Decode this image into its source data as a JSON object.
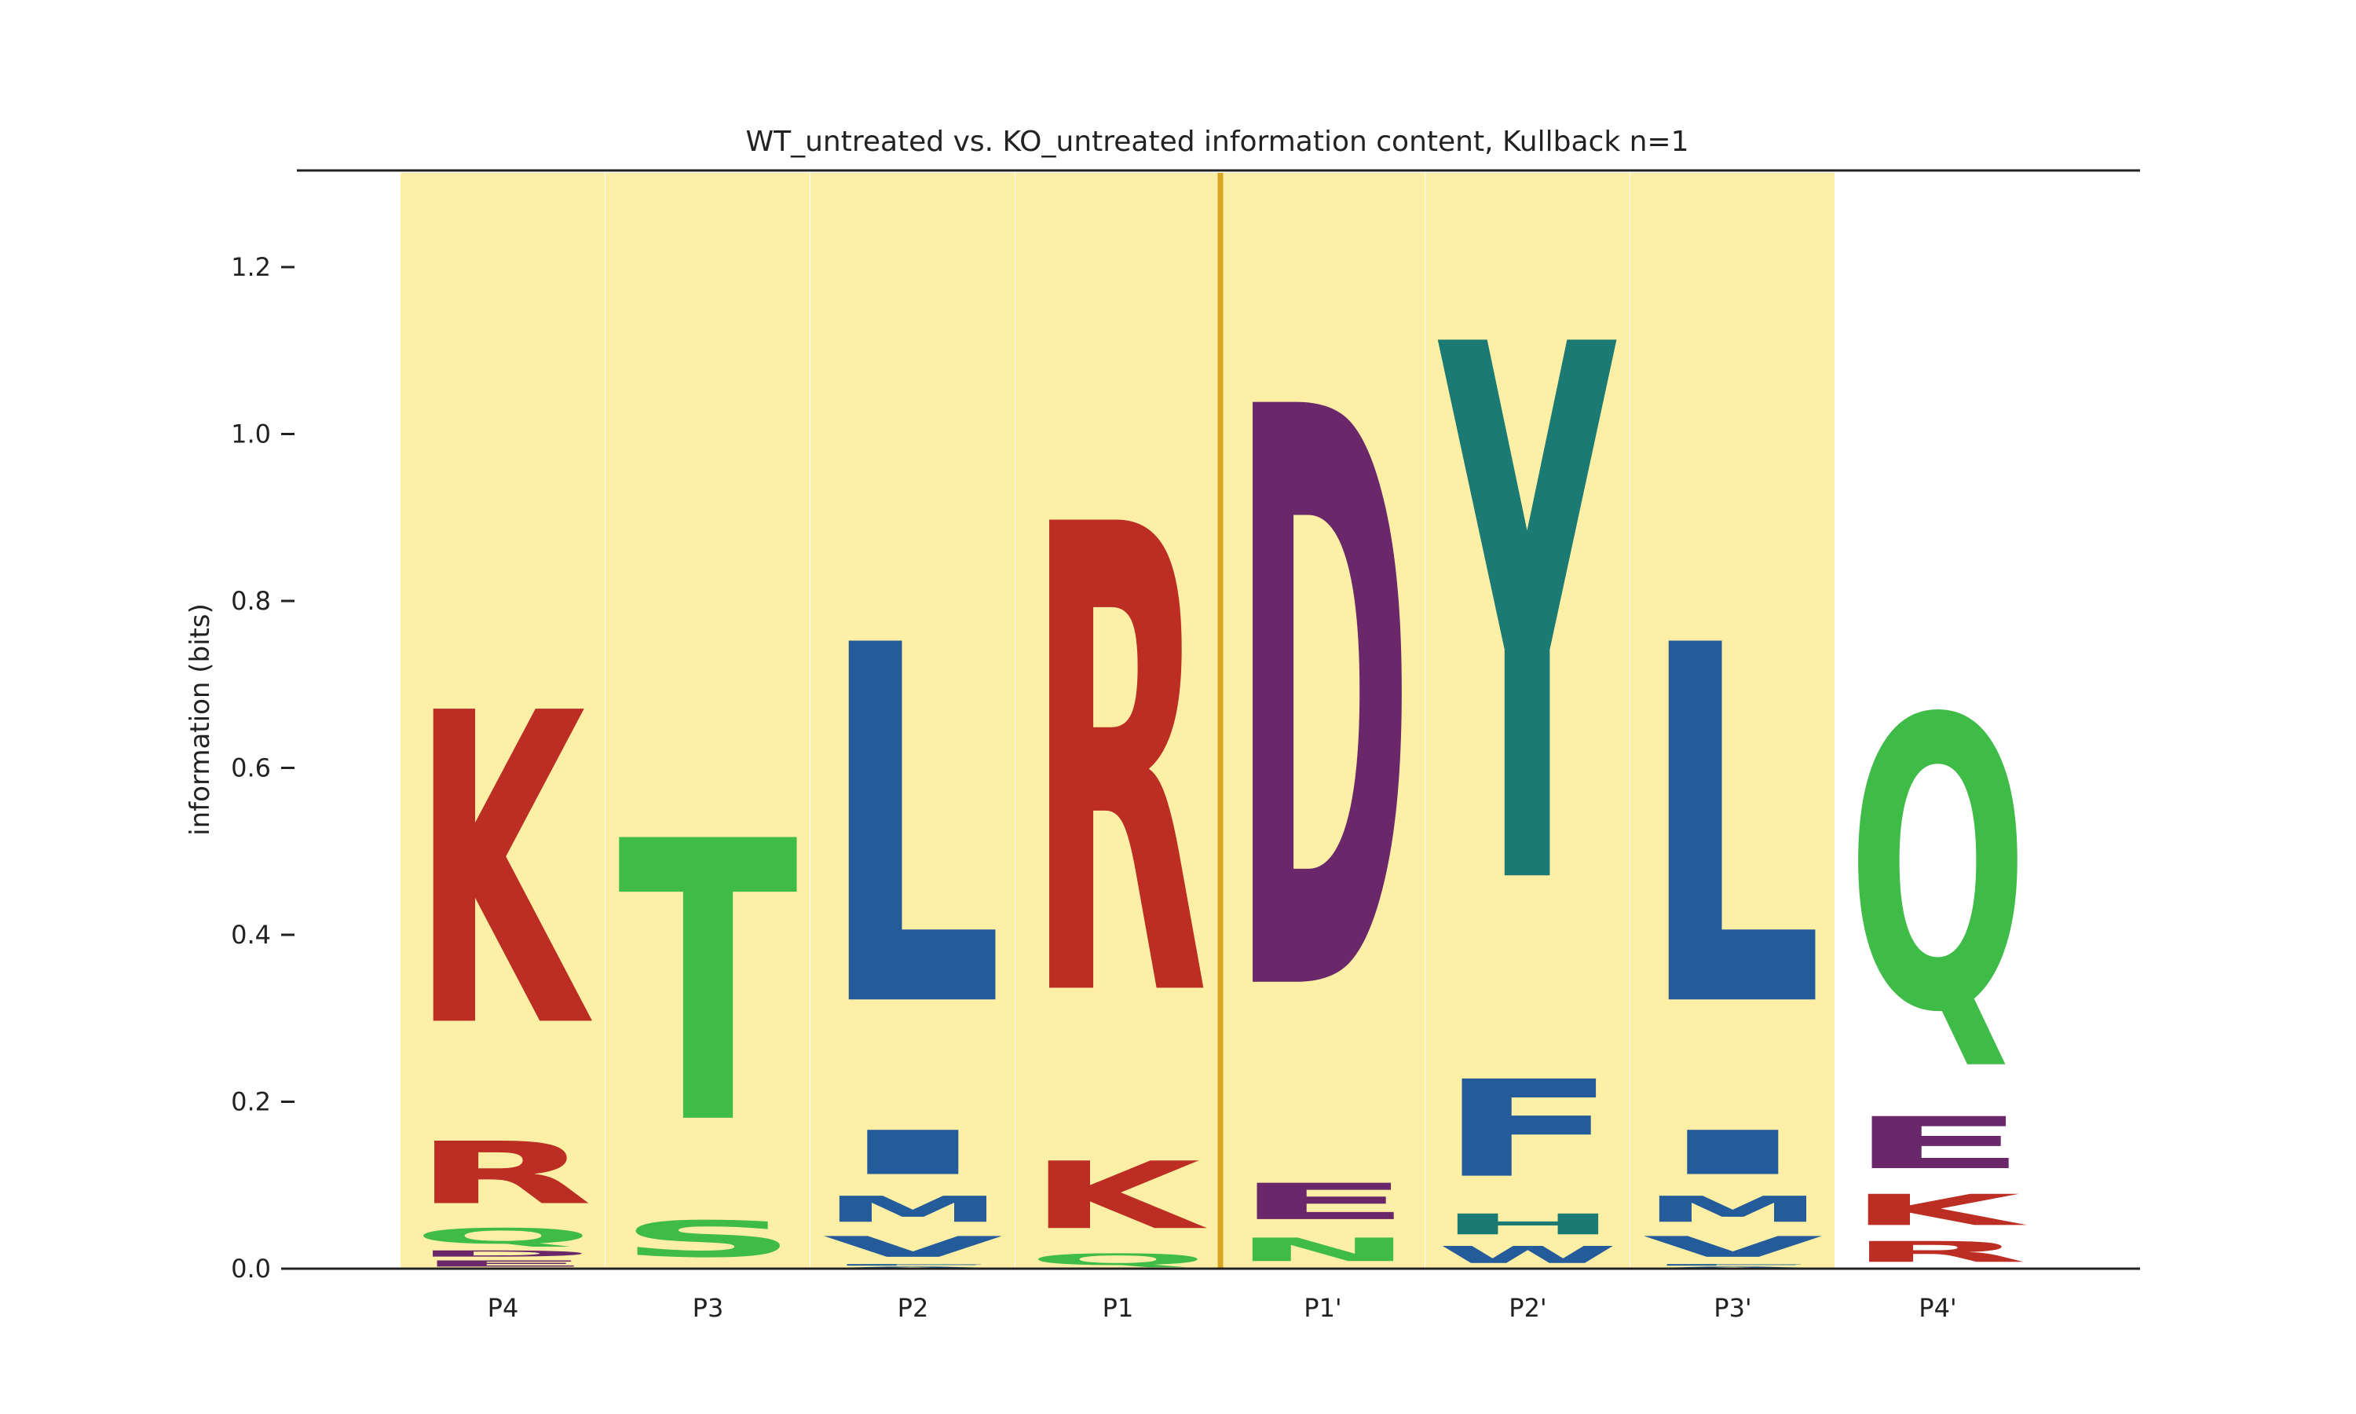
{
  "chart_data": {
    "type": "sequence-logo",
    "title": "WT_untreated vs. KO_untreated information content, Kullback n=1",
    "ylabel": "information (bits)",
    "xlabel": "",
    "ylim": [
      0,
      1.3
    ],
    "yticks": [
      "0.0",
      "0.2",
      "0.4",
      "0.6",
      "0.8",
      "1.0",
      "1.2"
    ],
    "highlighted_positions": [
      "P4",
      "P3",
      "P2",
      "P1",
      "P1'",
      "P2'",
      "P3'"
    ],
    "cleavage_site_between": [
      "P1",
      "P1'"
    ],
    "colors": {
      "highlight_band": "#fdf0a6",
      "cleavage_line": "#daa520",
      "axis": "#222222"
    },
    "positions": [
      {
        "label": "P4",
        "stack": [
          {
            "letter": "E",
            "bits": 0.012,
            "color": "#6a2769"
          },
          {
            "letter": "D",
            "bits": 0.012,
            "color": "#6a2769"
          },
          {
            "letter": "Q",
            "bits": 0.03,
            "color": "#3fbb47"
          },
          {
            "letter": "R",
            "bits": 0.12,
            "color": "#bc2d23"
          },
          {
            "letter": "K",
            "bits": 0.6,
            "color": "#bc2d23"
          }
        ]
      },
      {
        "label": "P3",
        "stack": [
          {
            "letter": "S",
            "bits": 0.07,
            "color": "#3fbb47"
          },
          {
            "letter": "T",
            "bits": 0.54,
            "color": "#3fbb47"
          }
        ]
      },
      {
        "label": "P2",
        "stack": [
          {
            "letter": "A",
            "bits": 0.003,
            "color": "#235b9b"
          },
          {
            "letter": "F",
            "bits": 0.003,
            "color": "#235b9b"
          },
          {
            "letter": "V",
            "bits": 0.04,
            "color": "#235b9b"
          },
          {
            "letter": "M",
            "bits": 0.05,
            "color": "#235b9b"
          },
          {
            "letter": "I",
            "bits": 0.085,
            "color": "#235b9b"
          },
          {
            "letter": "L",
            "bits": 0.69,
            "color": "#235b9b"
          }
        ]
      },
      {
        "label": "P1",
        "stack": [
          {
            "letter": "Q",
            "bits": 0.022,
            "color": "#3fbb47"
          },
          {
            "letter": "K",
            "bits": 0.13,
            "color": "#bc2d23"
          },
          {
            "letter": "R",
            "bits": 0.9,
            "color": "#bc2d23"
          }
        ]
      },
      {
        "label": "P1'",
        "stack": [
          {
            "letter": "N",
            "bits": 0.045,
            "color": "#3fbb47"
          },
          {
            "letter": "E",
            "bits": 0.07,
            "color": "#6a2769"
          },
          {
            "letter": "D",
            "bits": 1.115,
            "color": "#6a2769"
          }
        ]
      },
      {
        "label": "P2'",
        "stack": [
          {
            "letter": "W",
            "bits": 0.033,
            "color": "#235b9b"
          },
          {
            "letter": "H",
            "bits": 0.04,
            "color": "#1b7a74"
          },
          {
            "letter": "F",
            "bits": 0.187,
            "color": "#235b9b"
          },
          {
            "letter": "Y",
            "bits": 1.03,
            "color": "#1b7a74"
          }
        ]
      },
      {
        "label": "P3'",
        "stack": [
          {
            "letter": "A",
            "bits": 0.003,
            "color": "#235b9b"
          },
          {
            "letter": "F",
            "bits": 0.003,
            "color": "#235b9b"
          },
          {
            "letter": "V",
            "bits": 0.04,
            "color": "#235b9b"
          },
          {
            "letter": "M",
            "bits": 0.05,
            "color": "#235b9b"
          },
          {
            "letter": "I",
            "bits": 0.085,
            "color": "#235b9b"
          },
          {
            "letter": "L",
            "bits": 0.69,
            "color": "#235b9b"
          }
        ]
      },
      {
        "label": "P4'",
        "stack": [
          {
            "letter": "R",
            "bits": 0.04,
            "color": "#bc2d23"
          },
          {
            "letter": "K",
            "bits": 0.06,
            "color": "#bc2d23"
          },
          {
            "letter": "E",
            "bits": 0.1,
            "color": "#6a2769"
          },
          {
            "letter": "Q",
            "bits": 0.56,
            "color": "#3fbb47"
          }
        ]
      }
    ]
  }
}
